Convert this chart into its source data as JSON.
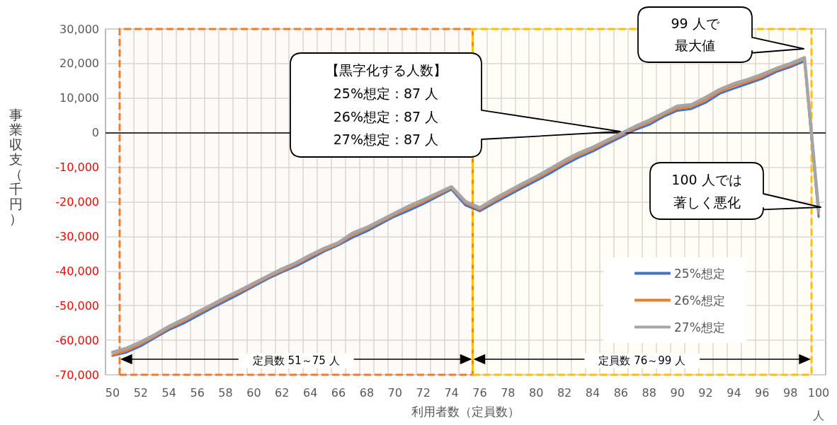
{
  "chart_data": {
    "type": "line",
    "xlabel": "利用者数（定員数）",
    "ylabel": "事業収支（千円）",
    "x": [
      50,
      51,
      52,
      53,
      54,
      55,
      56,
      57,
      58,
      59,
      60,
      61,
      62,
      63,
      64,
      65,
      66,
      67,
      68,
      69,
      70,
      71,
      72,
      73,
      74,
      75,
      76,
      77,
      78,
      79,
      80,
      81,
      82,
      83,
      84,
      85,
      86,
      87,
      88,
      89,
      90,
      91,
      92,
      93,
      94,
      95,
      96,
      97,
      98,
      99,
      100
    ],
    "series": [
      {
        "name": "25%想定",
        "color": "#4472c4",
        "values": [
          -64500,
          -63500,
          -61700,
          -59300,
          -57000,
          -55200,
          -53000,
          -50800,
          -48700,
          -46600,
          -44400,
          -42200,
          -40300,
          -38600,
          -36500,
          -34300,
          -32500,
          -30300,
          -28500,
          -26300,
          -24200,
          -22500,
          -20600,
          -18500,
          -16400,
          -21000,
          -22700,
          -20400,
          -18200,
          -16000,
          -13900,
          -11700,
          -9300,
          -7200,
          -5400,
          -3300,
          -1300,
          800,
          2300,
          4600,
          6400,
          6900,
          8700,
          11300,
          12800,
          14200,
          15600,
          17600,
          19000,
          20700,
          -24300
        ]
      },
      {
        "name": "26%想定",
        "color": "#ed7d31",
        "values": [
          -64300,
          -63000,
          -61100,
          -58900,
          -56500,
          -54600,
          -52400,
          -50300,
          -48100,
          -46100,
          -44000,
          -41800,
          -39900,
          -38100,
          -35900,
          -33900,
          -32200,
          -29600,
          -27900,
          -25800,
          -23700,
          -21800,
          -20000,
          -18000,
          -16000,
          -20400,
          -22200,
          -19800,
          -17600,
          -15400,
          -13300,
          -11000,
          -8600,
          -6500,
          -4800,
          -2700,
          -700,
          1300,
          3000,
          5100,
          7000,
          7500,
          9400,
          11900,
          13500,
          14800,
          16200,
          18100,
          19500,
          21200,
          -23400
        ]
      },
      {
        "name": "27%想定",
        "color": "#a5a5a5",
        "values": [
          -63500,
          -62300,
          -60500,
          -58400,
          -56000,
          -54000,
          -51900,
          -49800,
          -47600,
          -45600,
          -43500,
          -41400,
          -39400,
          -37600,
          -35400,
          -33400,
          -31800,
          -29000,
          -27400,
          -25300,
          -23200,
          -21200,
          -19400,
          -17500,
          -15600,
          -19900,
          -21700,
          -19200,
          -17000,
          -14800,
          -12700,
          -10400,
          -8000,
          -5900,
          -4200,
          -2200,
          -200,
          1800,
          3600,
          5600,
          7700,
          8100,
          10200,
          12500,
          14200,
          15400,
          16900,
          18600,
          20000,
          21700,
          -22500
        ]
      }
    ],
    "xlim": [
      49.5,
      100.5
    ],
    "xticks": [
      50,
      52,
      54,
      56,
      58,
      60,
      62,
      64,
      66,
      68,
      70,
      72,
      74,
      76,
      78,
      80,
      82,
      84,
      86,
      88,
      90,
      92,
      94,
      96,
      98,
      {
        "value": 100,
        "label": "100\n人"
      },
      {
        "value": 50.5,
        "label": null
      },
      {
        "value": 51.5,
        "label": null
      },
      {
        "value": 52.5,
        "label": null
      },
      {
        "value": 53.5,
        "label": null
      },
      {
        "value": 54.5,
        "label": null
      },
      {
        "value": 55.5,
        "label": null
      },
      {
        "value": 56.5,
        "label": null
      },
      {
        "value": 57.5,
        "label": null
      },
      {
        "value": 58.5,
        "label": null
      },
      {
        "value": 59.5,
        "label": null
      },
      {
        "value": 60.5,
        "label": null
      },
      {
        "value": 61.5,
        "label": null
      },
      {
        "value": 62.5,
        "label": null
      },
      {
        "value": 63.5,
        "label": null
      },
      {
        "value": 64.5,
        "label": null
      },
      {
        "value": 65.5,
        "label": null
      },
      {
        "value": 66.5,
        "label": null
      },
      {
        "value": 67.5,
        "label": null
      },
      {
        "value": 68.5,
        "label": null
      },
      {
        "value": 69.5,
        "label": null
      },
      {
        "value": 70.5,
        "label": null
      },
      {
        "value": 71.5,
        "label": null
      },
      {
        "value": 72.5,
        "label": null
      },
      {
        "value": 73.5,
        "label": null
      },
      {
        "value": 74.5,
        "label": null
      },
      {
        "value": 76.5,
        "label": null
      },
      {
        "value": 77.5,
        "label": null
      },
      {
        "value": 78.5,
        "label": null
      },
      {
        "value": 79.5,
        "label": null
      },
      {
        "value": 80.5,
        "label": null
      },
      {
        "value": 81.5,
        "label": null
      },
      {
        "value": 82.5,
        "label": null
      },
      {
        "value": 83.5,
        "label": null
      },
      {
        "value": 84.5,
        "label": null
      },
      {
        "value": 85.5,
        "label": null
      },
      {
        "value": 86.5,
        "label": null
      },
      {
        "value": 87.5,
        "label": null
      },
      {
        "value": 88.5,
        "label": null
      },
      {
        "value": 89.5,
        "label": null
      },
      {
        "value": 90.5,
        "label": null
      },
      {
        "value": 91.5,
        "label": null
      },
      {
        "value": 92.5,
        "label": null
      },
      {
        "value": 93.5,
        "label": null
      },
      {
        "value": 94.5,
        "label": null
      },
      {
        "value": 95.5,
        "label": null
      },
      {
        "value": 96.5,
        "label": null
      },
      {
        "value": 97.5,
        "label": null
      },
      {
        "value": 98.5,
        "label": null
      },
      {
        "value": 99.5,
        "label": null
      }
    ],
    "ylim": [
      -70000,
      30000
    ],
    "yticks": [
      {
        "value": -70000,
        "label": "-70,000"
      },
      {
        "value": -60000,
        "label": "-60,000"
      },
      {
        "value": -50000,
        "label": "-50,000"
      },
      {
        "value": -40000,
        "label": "-40,000"
      },
      {
        "value": -30000,
        "label": "-30,000"
      },
      {
        "value": -20000,
        "label": "-20,000"
      },
      {
        "value": -10000,
        "label": "-10,000"
      },
      0,
      {
        "value": 10000,
        "label": "10,000"
      },
      {
        "value": 20000,
        "label": "20,000"
      },
      {
        "value": 30000,
        "label": "30,000"
      }
    ],
    "grid": true,
    "legend": "bottom right",
    "marker": "none",
    "line_style": "solid",
    "ref_lines": [
      {
        "axis": "y",
        "value": 0,
        "color": "#000000"
      }
    ],
    "bands": [
      {
        "axis": "x",
        "from": 50.5,
        "to": 75.5,
        "label": "定員数 51～75 人",
        "color": "#ed7d31"
      },
      {
        "axis": "x",
        "from": 75.5,
        "to": 99.5,
        "label": "定員数 76～99 人",
        "color": "#ffc000"
      }
    ],
    "annotations": [
      "【黒字化する人数】\n25%想定：87 人\n26%想定：87 人\n27%想定：87 人",
      "99 人で最大値",
      "100 人では著しく悪化"
    ]
  }
}
